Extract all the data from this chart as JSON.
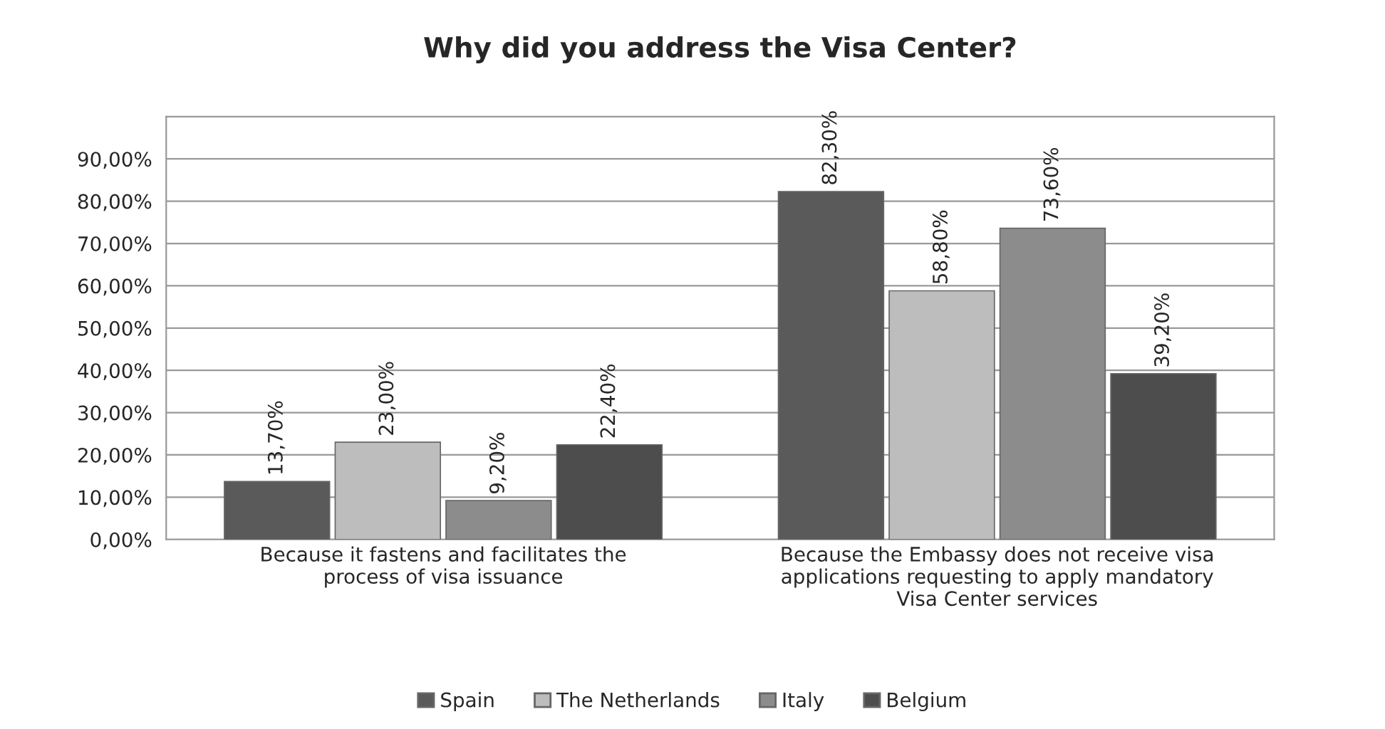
{
  "chart_data": {
    "type": "bar",
    "title": "Why did you address the Visa Center?",
    "categories": [
      "Because it fastens and facilitates the process of visa issuance",
      "Because the Embassy does not receive visa applications requesting to apply mandatory Visa Center services"
    ],
    "series": [
      {
        "name": "Spain",
        "color": "#5a5a5a",
        "values": [
          13.7,
          82.3
        ],
        "value_labels": [
          "13,70%",
          "82,30%"
        ]
      },
      {
        "name": "The Netherlands",
        "color": "#bdbdbd",
        "values": [
          23.0,
          58.8
        ],
        "value_labels": [
          "23,00%",
          "58,80%"
        ]
      },
      {
        "name": "Italy",
        "color": "#8c8c8c",
        "values": [
          9.2,
          73.6
        ],
        "value_labels": [
          "9,20%",
          "73,60%"
        ]
      },
      {
        "name": "Belgium",
        "color": "#4d4d4d",
        "values": [
          22.4,
          39.2
        ],
        "value_labels": [
          "22,40%",
          "39,20%"
        ]
      }
    ],
    "ylim": [
      0,
      100
    ],
    "yticks": [
      {
        "value": 0,
        "label": "0,00%"
      },
      {
        "value": 10,
        "label": "10,00%"
      },
      {
        "value": 20,
        "label": "20,00%"
      },
      {
        "value": 30,
        "label": "30,00%"
      },
      {
        "value": 40,
        "label": "40,00%"
      },
      {
        "value": 50,
        "label": "50,00%"
      },
      {
        "value": 60,
        "label": "60,00%"
      },
      {
        "value": 70,
        "label": "70,00%"
      },
      {
        "value": 80,
        "label": "80,00%"
      },
      {
        "value": 90,
        "label": "90,00%"
      },
      {
        "value": 100,
        "label": null
      }
    ],
    "grid": "y",
    "legend": "bottom"
  }
}
